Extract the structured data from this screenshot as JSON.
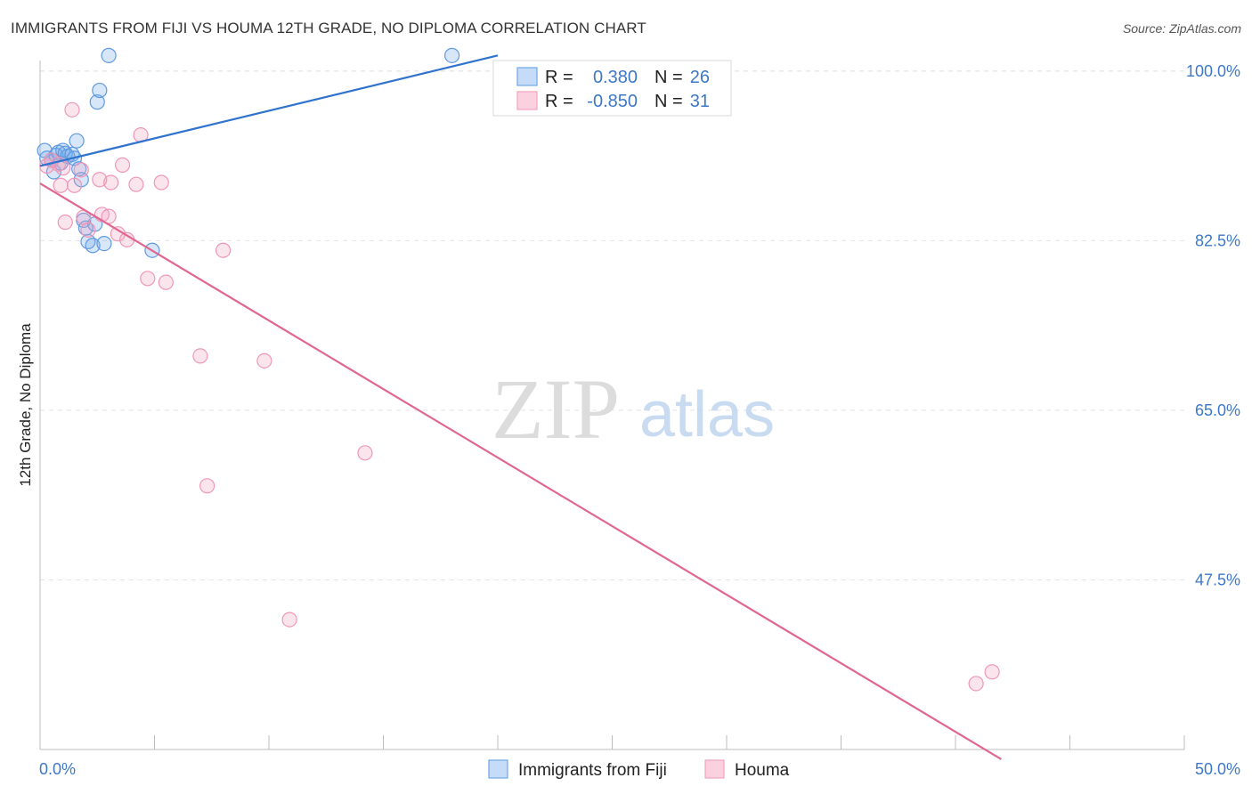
{
  "title": "IMMIGRANTS FROM FIJI VS HOUMA 12TH GRADE, NO DIPLOMA CORRELATION CHART",
  "source": "Source: ZipAtlas.com",
  "watermark": {
    "zip": "ZIP",
    "atlas": "atlas"
  },
  "chart_data": {
    "type": "scatter",
    "xlabel": "",
    "ylabel": "12th Grade, No Diploma",
    "xlim": [
      0,
      50
    ],
    "ylim": [
      30,
      102
    ],
    "x_tick_labels": [
      "0.0%",
      "50.0%"
    ],
    "y_ticks": [
      47.5,
      65.0,
      82.5,
      100.0
    ],
    "y_tick_labels": [
      "47.5%",
      "65.0%",
      "82.5%",
      "100.0%"
    ],
    "grid": true,
    "legend_placement": "top-center",
    "colors": {
      "fiji": "#6fa8e8",
      "houma": "#f2a3bf",
      "fiji_line": "#2f73cf",
      "houma_line": "#e0678f"
    },
    "series": [
      {
        "name": "Immigrants from Fiji",
        "key": "fiji",
        "r_label": "R =",
        "r_value": "0.380",
        "n_label": "N =",
        "n_value": "26",
        "trend": {
          "x": [
            0,
            20
          ],
          "y": [
            90.2,
            101.6
          ]
        },
        "points": [
          {
            "x": 0.2,
            "y": 91.8
          },
          {
            "x": 0.3,
            "y": 91.0
          },
          {
            "x": 0.5,
            "y": 90.8
          },
          {
            "x": 0.6,
            "y": 89.6
          },
          {
            "x": 0.7,
            "y": 91.3
          },
          {
            "x": 0.8,
            "y": 91.6
          },
          {
            "x": 0.9,
            "y": 90.5
          },
          {
            "x": 1.0,
            "y": 91.8
          },
          {
            "x": 1.1,
            "y": 91.5
          },
          {
            "x": 1.2,
            "y": 91.2
          },
          {
            "x": 1.4,
            "y": 91.4
          },
          {
            "x": 1.5,
            "y": 91.0
          },
          {
            "x": 1.6,
            "y": 92.8
          },
          {
            "x": 1.7,
            "y": 89.9
          },
          {
            "x": 1.8,
            "y": 88.8
          },
          {
            "x": 1.9,
            "y": 84.6
          },
          {
            "x": 2.0,
            "y": 83.8
          },
          {
            "x": 2.1,
            "y": 82.4
          },
          {
            "x": 2.3,
            "y": 82.0
          },
          {
            "x": 2.4,
            "y": 84.2
          },
          {
            "x": 2.5,
            "y": 96.8
          },
          {
            "x": 2.6,
            "y": 98.0
          },
          {
            "x": 2.8,
            "y": 82.2
          },
          {
            "x": 3.0,
            "y": 101.6
          },
          {
            "x": 4.9,
            "y": 81.5
          },
          {
            "x": 18.0,
            "y": 101.6
          }
        ]
      },
      {
        "name": "Houma",
        "key": "houma",
        "r_label": "R =",
        "r_value": "-0.850",
        "n_label": "N =",
        "n_value": "31",
        "trend": {
          "x": [
            0,
            42
          ],
          "y": [
            88.4,
            29.0
          ]
        },
        "points": [
          {
            "x": 0.3,
            "y": 90.2
          },
          {
            "x": 0.5,
            "y": 90.8
          },
          {
            "x": 0.8,
            "y": 90.4
          },
          {
            "x": 0.9,
            "y": 88.2
          },
          {
            "x": 1.0,
            "y": 90.0
          },
          {
            "x": 1.1,
            "y": 84.4
          },
          {
            "x": 1.4,
            "y": 96.0
          },
          {
            "x": 1.5,
            "y": 88.2
          },
          {
            "x": 1.8,
            "y": 89.8
          },
          {
            "x": 1.9,
            "y": 84.9
          },
          {
            "x": 2.1,
            "y": 83.6
          },
          {
            "x": 2.6,
            "y": 88.8
          },
          {
            "x": 2.7,
            "y": 85.2
          },
          {
            "x": 3.0,
            "y": 85.0
          },
          {
            "x": 3.1,
            "y": 88.5
          },
          {
            "x": 3.4,
            "y": 83.2
          },
          {
            "x": 3.6,
            "y": 90.3
          },
          {
            "x": 3.8,
            "y": 82.6
          },
          {
            "x": 4.2,
            "y": 88.3
          },
          {
            "x": 4.4,
            "y": 93.4
          },
          {
            "x": 4.7,
            "y": 78.6
          },
          {
            "x": 5.3,
            "y": 88.5
          },
          {
            "x": 5.5,
            "y": 78.2
          },
          {
            "x": 7.0,
            "y": 70.6
          },
          {
            "x": 7.3,
            "y": 57.2
          },
          {
            "x": 8.0,
            "y": 81.5
          },
          {
            "x": 9.8,
            "y": 70.1
          },
          {
            "x": 10.9,
            "y": 43.4
          },
          {
            "x": 14.2,
            "y": 60.6
          },
          {
            "x": 40.9,
            "y": 36.8
          },
          {
            "x": 41.6,
            "y": 38.0
          }
        ]
      }
    ]
  }
}
